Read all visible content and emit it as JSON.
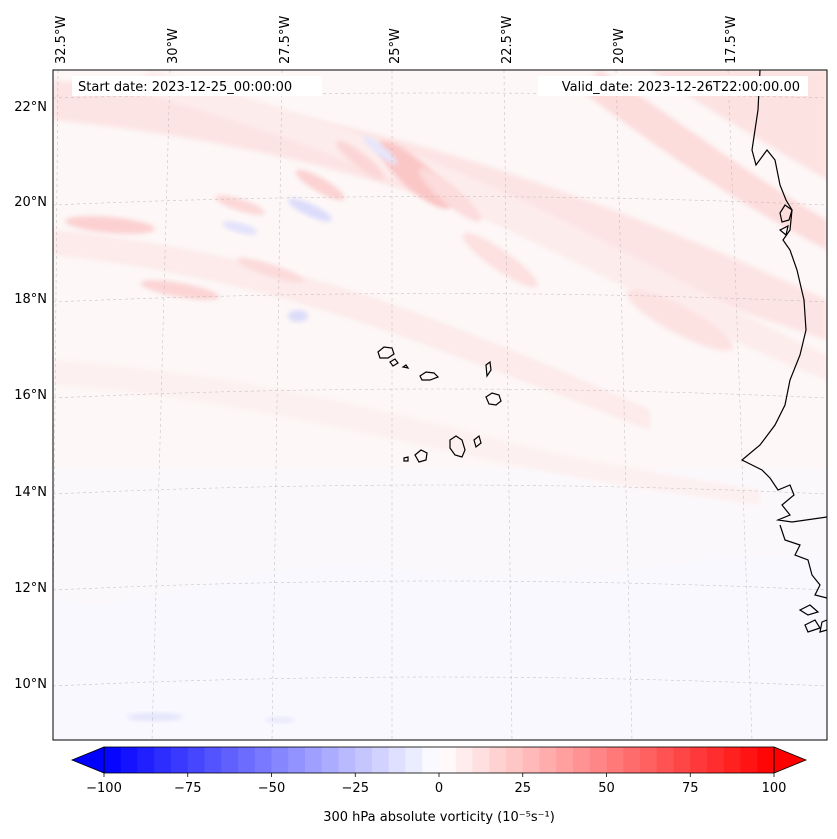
{
  "map": {
    "start_date": "Start date: 2023-12-25_00:00:00",
    "valid_date": "Valid_date: 2023-12-26T22:00:00.00",
    "lon_labels": [
      "32.5°W",
      "30°W",
      "27.5°W",
      "25°W",
      "22.5°W",
      "20°W",
      "17.5°W"
    ],
    "lat_labels": [
      "22°N",
      "20°N",
      "18°N",
      "16°N",
      "14°N",
      "12°N",
      "10°N"
    ]
  },
  "colorbar": {
    "label": "300 hPa absolute vorticity (10⁻⁵s⁻¹)",
    "min": -100,
    "max": 100,
    "ticks": [
      "−100",
      "−75",
      "−50",
      "−25",
      "0",
      "25",
      "50",
      "75",
      "100"
    ],
    "low_color": "#0000ff",
    "high_color": "#ff0000"
  },
  "colors": {
    "coastline": "#000000",
    "gridline": "#b0b0b0"
  }
}
